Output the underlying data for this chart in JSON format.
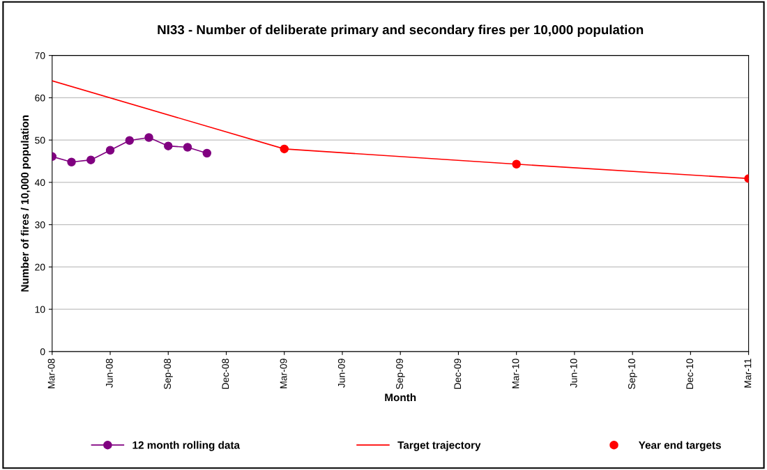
{
  "chart_data": {
    "type": "line",
    "title": "NI33 - Number of deliberate primary and secondary fires per 10,000 population",
    "xlabel": "Month",
    "ylabel": "Number of fires / 10,000 population",
    "series": [
      {
        "name": "12 month rolling data",
        "color": "#800080",
        "marker": "circle",
        "x": [
          "2008-03",
          "2008-04",
          "2008-05",
          "2008-06",
          "2008-07",
          "2008-08",
          "2008-09",
          "2008-10",
          "2008-11"
        ],
        "values": [
          46.1,
          44.8,
          45.3,
          47.6,
          49.9,
          50.6,
          48.6,
          48.3,
          46.9
        ]
      },
      {
        "name": "Target trajectory",
        "color": "#ff0000",
        "marker": "none",
        "x": [
          "2008-03",
          "2009-03",
          "2010-03",
          "2011-03"
        ],
        "values": [
          64,
          47.9,
          44.3,
          40.9
        ]
      },
      {
        "name": "Year end targets",
        "type": "scatter",
        "color": "#ff0000",
        "marker": "circle",
        "x": [
          "2009-03",
          "2010-03",
          "2011-03"
        ],
        "values": [
          47.9,
          44.3,
          40.9
        ]
      }
    ],
    "xlim": [
      "2008-03",
      "2011-03"
    ],
    "xticks": [
      {
        "value": "2008-03",
        "label": "Mar-08"
      },
      {
        "value": "2008-06",
        "label": "Jun-08"
      },
      {
        "value": "2008-09",
        "label": "Sep-08"
      },
      {
        "value": "2008-12",
        "label": "Dec-08"
      },
      {
        "value": "2009-03",
        "label": "Mar-09"
      },
      {
        "value": "2009-06",
        "label": "Jun-09"
      },
      {
        "value": "2009-09",
        "label": "Sep-09"
      },
      {
        "value": "2009-12",
        "label": "Dec-09"
      },
      {
        "value": "2010-03",
        "label": "Mar-10"
      },
      {
        "value": "2010-06",
        "label": "Jun-10"
      },
      {
        "value": "2010-09",
        "label": "Sep-10"
      },
      {
        "value": "2010-12",
        "label": "Dec-10"
      },
      {
        "value": "2011-03",
        "label": "Mar-11"
      }
    ],
    "ylim": [
      0,
      70
    ],
    "yticks": [
      0,
      10,
      20,
      30,
      40,
      50,
      60,
      70
    ],
    "grid": "y",
    "legend": "bottom"
  }
}
